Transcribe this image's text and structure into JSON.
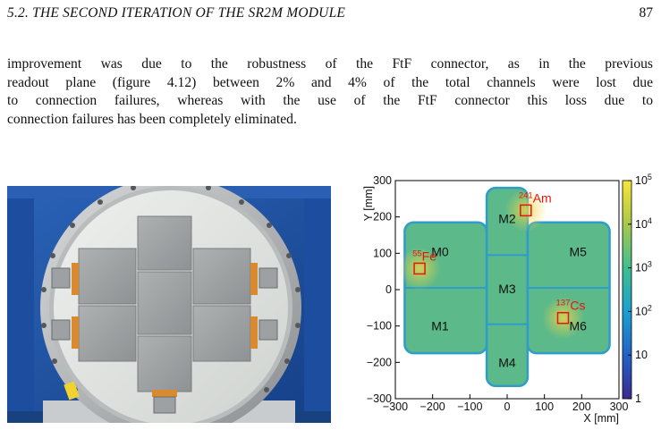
{
  "header": {
    "section": "5.2.  THE SECOND ITERATION OF THE SR2M MODULE",
    "page_number": "87"
  },
  "paragraph": {
    "lines": [
      "improvement was due to the robustness of the FtF connector, as in the previous",
      "readout plane (figure 4.12) between 2% and 4% of the total channels were lost due",
      "to connection failures, whereas with the use of the FtF connector this loss due to",
      "connection failures has been completely eliminated."
    ]
  },
  "photo": {
    "description_icon": "detector-photo"
  },
  "chart_data": {
    "type": "heatmap",
    "xlabel": "X [mm]",
    "ylabel": "Y [mm]",
    "xlim": [
      -300,
      300
    ],
    "ylim": [
      -300,
      300
    ],
    "x_ticks": [
      -300,
      -200,
      -100,
      0,
      100,
      200,
      300
    ],
    "y_ticks": [
      -300,
      -200,
      -100,
      0,
      100,
      200,
      300
    ],
    "x_tick_labels": [
      "−300",
      "−200",
      "−100",
      "0",
      "100",
      "200",
      "300"
    ],
    "y_tick_labels": [
      "−300",
      "−200",
      "−100",
      "0",
      "100",
      "200",
      "300"
    ],
    "colorbar": {
      "scale": "log",
      "min": 1,
      "max": 100000,
      "tick_labels": [
        {
          "base": "10",
          "exp": "5",
          "value": 100000
        },
        {
          "base": "10",
          "exp": "4",
          "value": 10000
        },
        {
          "base": "10",
          "exp": "3",
          "value": 1000
        },
        {
          "base": "10",
          "exp": "2",
          "value": 100
        },
        {
          "base": "10",
          "exp": "",
          "value": 10
        },
        {
          "base": "1",
          "exp": "",
          "value": 1
        }
      ]
    },
    "modules": [
      {
        "label": "M0",
        "x": -180,
        "y": 105
      },
      {
        "label": "M1",
        "x": -180,
        "y": -100
      },
      {
        "label": "M2",
        "x": 0,
        "y": 195
      },
      {
        "label": "M3",
        "x": 0,
        "y": 2
      },
      {
        "label": "M4",
        "x": 0,
        "y": -200
      },
      {
        "label": "M5",
        "x": 190,
        "y": 105
      },
      {
        "label": "M6",
        "x": 190,
        "y": -100
      }
    ],
    "sources": [
      {
        "mass": "55",
        "element": "Fe",
        "x": -235,
        "y": 58
      },
      {
        "mass": "241",
        "element": "Am",
        "x": 50,
        "y": 218
      },
      {
        "mass": "137",
        "element": "Cs",
        "x": 150,
        "y": -78
      }
    ],
    "colors": {
      "background_fill": "#5bb98a",
      "low_hits": "#2f9cc9",
      "high_hits": "#f0d64a",
      "source_color": "#e8150b"
    }
  }
}
